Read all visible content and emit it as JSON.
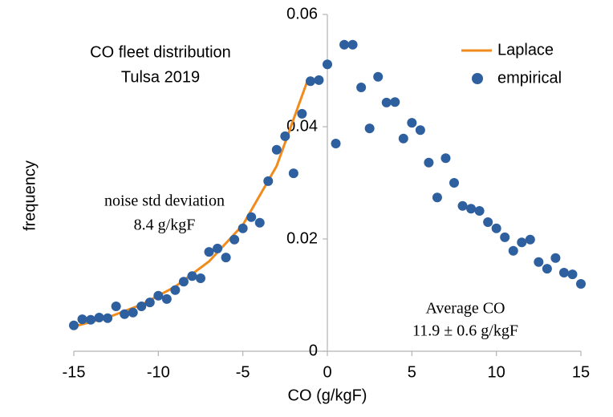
{
  "chart_data": {
    "type": "scatter",
    "title": "CO fleet distribution",
    "subtitle": "Tulsa 2019",
    "x_label": "CO (g/kgF)",
    "y_label": "frequency",
    "annotations": [
      "noise std deviation",
      "8.4 g/kgF",
      "Average CO",
      "11.9 ± 0.6 g/kgF"
    ],
    "xlim": [
      -15,
      15
    ],
    "xticks": [
      -15,
      -10,
      -5,
      0,
      5,
      10,
      15
    ],
    "ylim": [
      0,
      0.06
    ],
    "yticks": [
      0,
      0.02,
      0.04,
      0.06
    ],
    "grid": false,
    "legend": "upper right",
    "series": [
      {
        "name": "Laplace",
        "color": "#f28a1c",
        "kind": "line",
        "x": [
          -15,
          -13,
          -11,
          -9,
          -7,
          -5,
          -3,
          -1.2
        ],
        "values": [
          0.0044,
          0.006,
          0.0083,
          0.0115,
          0.016,
          0.0225,
          0.033,
          0.048
        ]
      },
      {
        "name": "empirical",
        "color": "#2e5f9e",
        "kind": "points",
        "x": [
          -15,
          -14.5,
          -14,
          -13.5,
          -13,
          -12.5,
          -12,
          -11.5,
          -11,
          -10.5,
          -10,
          -9.5,
          -9,
          -8.5,
          -8,
          -7.5,
          -7,
          -6.5,
          -6,
          -5.5,
          -5,
          -4.5,
          -4,
          -3.5,
          -3,
          -2.5,
          -2,
          -1.5,
          -1,
          -0.5,
          0,
          0.5,
          1,
          1.5,
          2,
          2.5,
          3,
          3.5,
          4,
          4.5,
          5,
          5.5,
          6,
          6.5,
          7,
          7.5,
          8,
          8.5,
          9,
          9.5,
          10,
          10.5,
          11,
          11.5,
          12,
          12.5,
          13,
          13.5,
          14,
          14.5,
          15
        ],
        "values": [
          0.0046,
          0.0057,
          0.0056,
          0.006,
          0.0059,
          0.008,
          0.0066,
          0.0069,
          0.008,
          0.0087,
          0.0099,
          0.0093,
          0.0109,
          0.0124,
          0.0134,
          0.013,
          0.0177,
          0.0183,
          0.0167,
          0.0199,
          0.0219,
          0.0239,
          0.0229,
          0.0303,
          0.0359,
          0.0383,
          0.0317,
          0.0423,
          0.0481,
          0.0483,
          0.0511,
          0.037,
          0.0546,
          0.0546,
          0.047,
          0.0397,
          0.0489,
          0.0443,
          0.0444,
          0.0379,
          0.0407,
          0.0394,
          0.0336,
          0.0274,
          0.0344,
          0.03,
          0.0259,
          0.0254,
          0.025,
          0.023,
          0.0219,
          0.0203,
          0.0179,
          0.0194,
          0.0199,
          0.0159,
          0.0147,
          0.0166,
          0.014,
          0.0137,
          0.012
        ]
      }
    ]
  }
}
